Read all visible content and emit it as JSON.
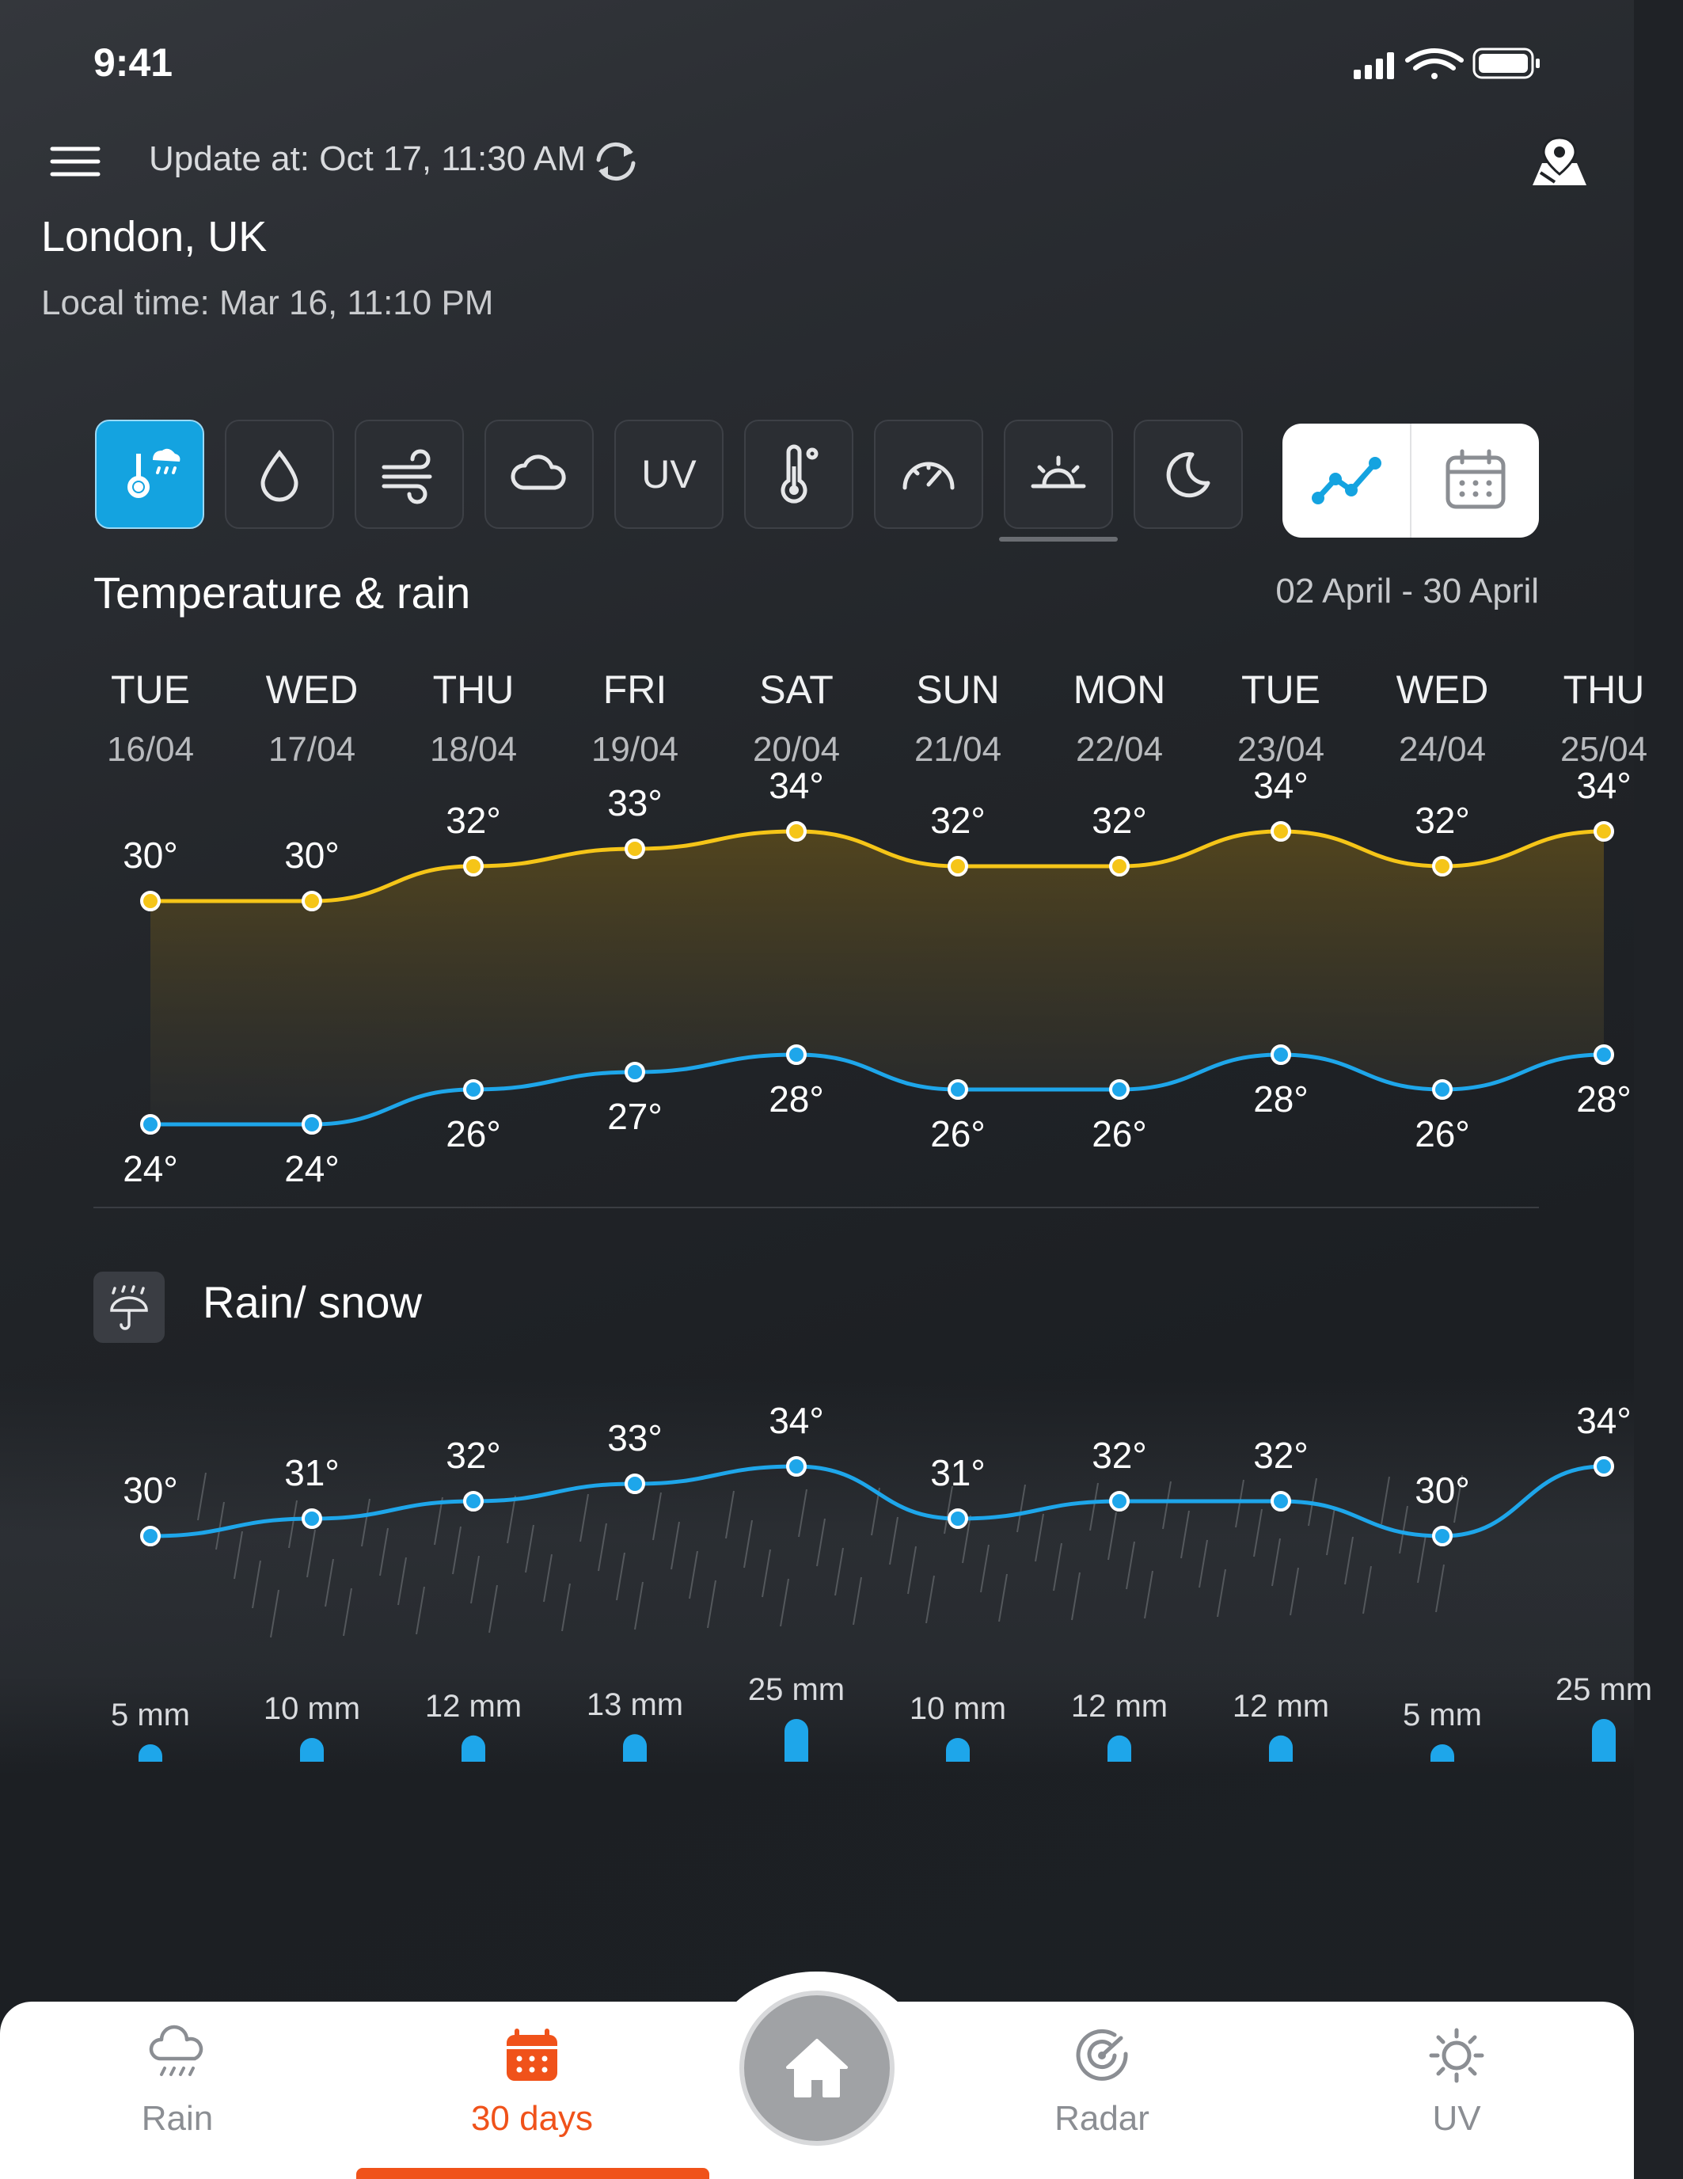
{
  "status": {
    "time": "9:41"
  },
  "header": {
    "update_label": "Update at:",
    "update_value": "Oct 17, 11:30 AM",
    "location": "London, UK",
    "local_time_label": "Local time:",
    "local_time_value": "Mar 16, 11:10 PM"
  },
  "toolbar": {
    "items": [
      {
        "icon": "thermometer-rain-icon",
        "active": true
      },
      {
        "icon": "droplet-icon"
      },
      {
        "icon": "wind-icon"
      },
      {
        "icon": "cloud-icon"
      },
      {
        "icon": "uv-icon",
        "label": "UV"
      },
      {
        "icon": "thermometer-icon"
      },
      {
        "icon": "pressure-gauge-icon"
      },
      {
        "icon": "sunrise-icon"
      },
      {
        "icon": "moon-icon"
      }
    ],
    "view_toggle": {
      "chart": "line-chart-icon",
      "calendar": "calendar-icon",
      "selected": "chart"
    }
  },
  "temperature_section": {
    "title": "Temperature & rain",
    "date_range": "02 April - 30 April"
  },
  "days": [
    {
      "name": "TUE",
      "date": "16/04"
    },
    {
      "name": "WED",
      "date": "17/04"
    },
    {
      "name": "THU",
      "date": "18/04"
    },
    {
      "name": "FRI",
      "date": "19/04"
    },
    {
      "name": "SAT",
      "date": "20/04"
    },
    {
      "name": "SUN",
      "date": "21/04"
    },
    {
      "name": "MON",
      "date": "22/04"
    },
    {
      "name": "TUE",
      "date": "23/04"
    },
    {
      "name": "WED",
      "date": "24/04"
    },
    {
      "name": "THU",
      "date": "25/04"
    }
  ],
  "chart_data": [
    {
      "type": "line",
      "categories": [
        "16/04",
        "17/04",
        "18/04",
        "19/04",
        "20/04",
        "21/04",
        "22/04",
        "23/04",
        "24/04",
        "25/04"
      ],
      "series": [
        {
          "values": [
            30,
            30,
            32,
            33,
            34,
            32,
            32,
            34,
            32,
            34
          ]
        },
        {
          "values": [
            24,
            24,
            26,
            27,
            28,
            26,
            26,
            28,
            26,
            28
          ]
        }
      ],
      "unit": "°",
      "colors": {
        "high": "#f5c518",
        "low": "#1ea6ea"
      }
    },
    {
      "type": "bar",
      "categories": [
        "16/04",
        "17/04",
        "18/04",
        "19/04",
        "20/04",
        "21/04",
        "22/04",
        "23/04",
        "24/04",
        "25/04"
      ],
      "temperature": [
        30,
        31,
        32,
        33,
        34,
        31,
        32,
        32,
        30,
        34
      ],
      "precipitation_mm": [
        5,
        10,
        12,
        13,
        25,
        10,
        12,
        12,
        5,
        25
      ],
      "precip_unit": "mm"
    }
  ],
  "rain_section": {
    "title": "Rain/ snow"
  },
  "nav": {
    "items": [
      {
        "label": "Rain",
        "icon": "rain-cloud-icon"
      },
      {
        "label": "30 days",
        "icon": "calendar-icon",
        "active": true
      },
      {
        "label": "Radar",
        "icon": "radar-icon"
      },
      {
        "label": "UV",
        "icon": "sun-icon"
      }
    ],
    "home_icon": "home-icon"
  },
  "colors": {
    "accent_blue": "#14a3e0",
    "accent_orange": "#f0521a",
    "high_temp": "#f5c518"
  }
}
